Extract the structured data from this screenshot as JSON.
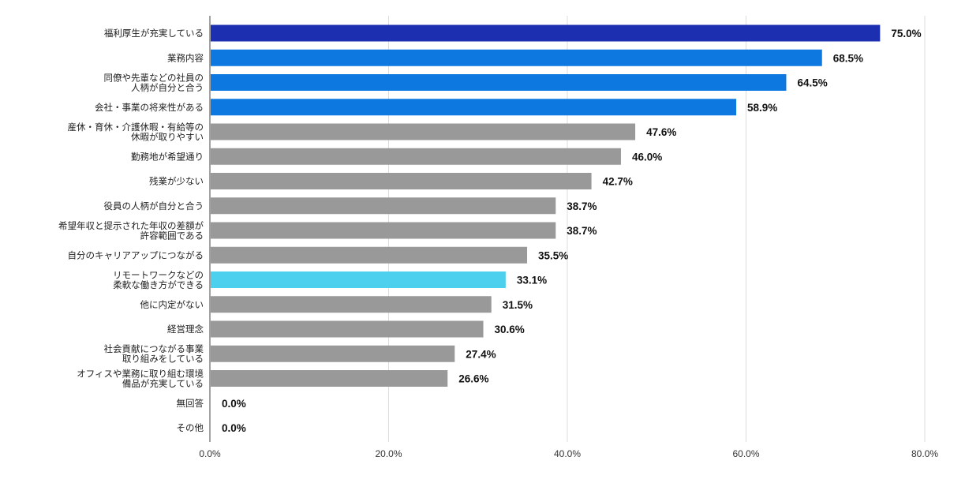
{
  "chart_data": {
    "type": "bar",
    "orientation": "horizontal",
    "title": "",
    "xlabel": "",
    "ylabel": "",
    "xlim": [
      0,
      80
    ],
    "grid": true,
    "legend": "none",
    "x_ticks": [
      "0.0%",
      "20.0%",
      "40.0%",
      "60.0%",
      "80.0%"
    ],
    "x_tick_values": [
      0,
      20,
      40,
      60,
      80
    ],
    "categories": [
      [
        "福利厚生が充実している"
      ],
      [
        "業務内容"
      ],
      [
        "同僚や先輩などの社員の",
        "人柄が自分と合う"
      ],
      [
        "会社・事業の将来性がある"
      ],
      [
        "産休・育休・介護休暇・有給等の",
        "休暇が取りやすい"
      ],
      [
        "勤務地が希望通り"
      ],
      [
        "残業が少ない"
      ],
      [
        "役員の人柄が自分と合う"
      ],
      [
        "希望年収と提示された年収の差額が",
        "許容範囲である"
      ],
      [
        "自分のキャリアアップにつながる"
      ],
      [
        "リモートワークなどの",
        "柔軟な働き方ができる"
      ],
      [
        "他に内定がない"
      ],
      [
        "経営理念"
      ],
      [
        "社会貢献につながる事業",
        "取り組みをしている"
      ],
      [
        "オフィスや業務に取り組む環境",
        "備品が充実している"
      ],
      [
        "無回答"
      ],
      [
        "その他"
      ]
    ],
    "values": [
      75.0,
      68.5,
      64.5,
      58.9,
      47.6,
      46.0,
      42.7,
      38.7,
      38.7,
      35.5,
      33.1,
      31.5,
      30.6,
      27.4,
      26.6,
      0.0,
      0.0
    ],
    "value_labels": [
      "75.0%",
      "68.5%",
      "64.5%",
      "58.9%",
      "47.6%",
      "46.0%",
      "42.7%",
      "38.7%",
      "38.7%",
      "35.5%",
      "33.1%",
      "31.5%",
      "30.6%",
      "27.4%",
      "26.6%",
      "0.0%",
      "0.0%"
    ],
    "bar_colors": [
      "#1c2fb0",
      "#0c78e0",
      "#0c78e0",
      "#0c78e0",
      "#999999",
      "#999999",
      "#999999",
      "#999999",
      "#999999",
      "#999999",
      "#4dcfee",
      "#999999",
      "#999999",
      "#999999",
      "#999999",
      "#999999",
      "#999999"
    ]
  },
  "colors": {
    "axis": "#444444",
    "grid": "#dddddd"
  }
}
